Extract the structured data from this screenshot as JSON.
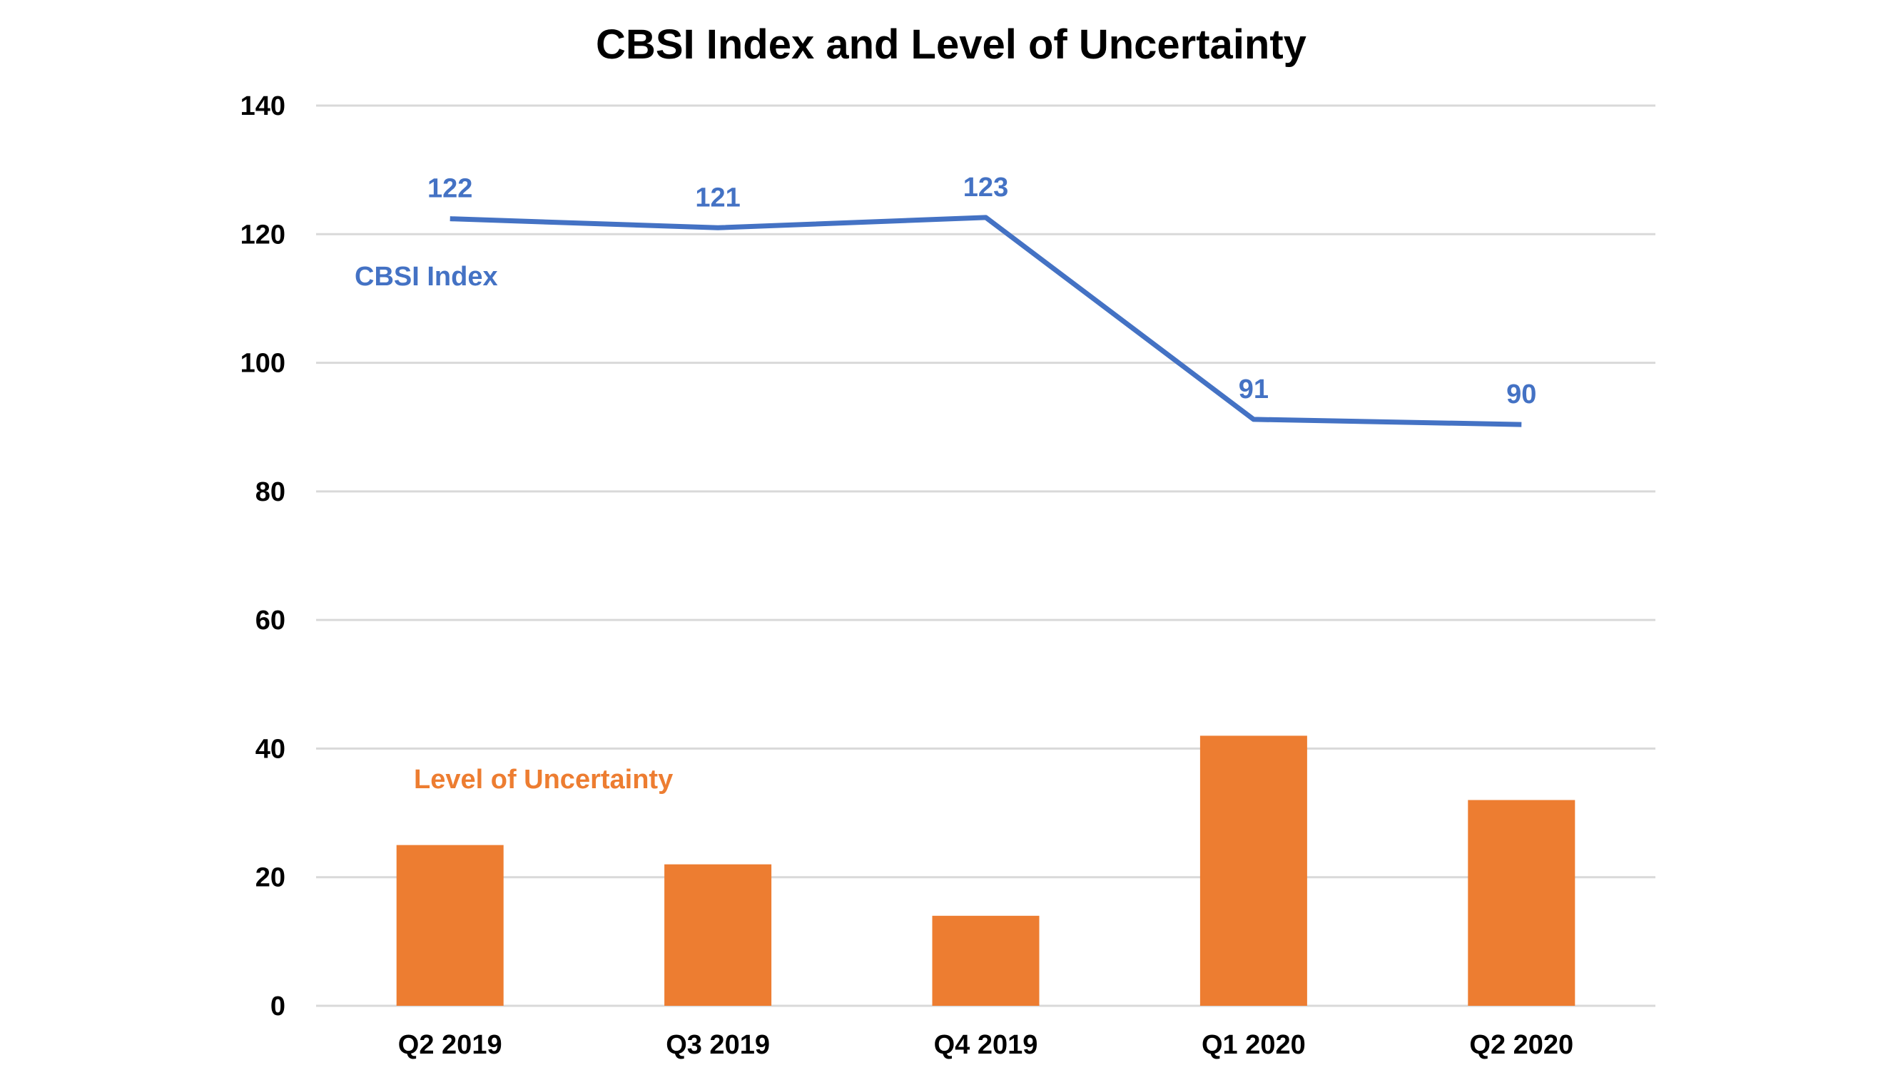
{
  "chart_data": {
    "type": "bar",
    "title": "CBSI Index and Level of Uncertainty",
    "categories": [
      "Q2 2019",
      "Q3 2019",
      "Q4 2019",
      "Q1 2020",
      "Q2 2020"
    ],
    "ylim": [
      0,
      140
    ],
    "yticks": [
      0,
      20,
      40,
      60,
      80,
      100,
      120,
      140
    ],
    "grid": true,
    "xlabel": "",
    "ylabel": "",
    "series": [
      {
        "name": "CBSI Index",
        "kind": "line",
        "color": "#4472C4",
        "values": [
          122.4,
          121.0,
          122.6,
          91.2,
          90.4
        ],
        "data_labels": [
          "122",
          "121",
          "123",
          "91",
          "90"
        ]
      },
      {
        "name": "Level of Uncertainty",
        "kind": "bar",
        "color": "#ED7D31",
        "values": [
          25,
          22,
          14,
          42,
          32
        ]
      }
    ]
  }
}
